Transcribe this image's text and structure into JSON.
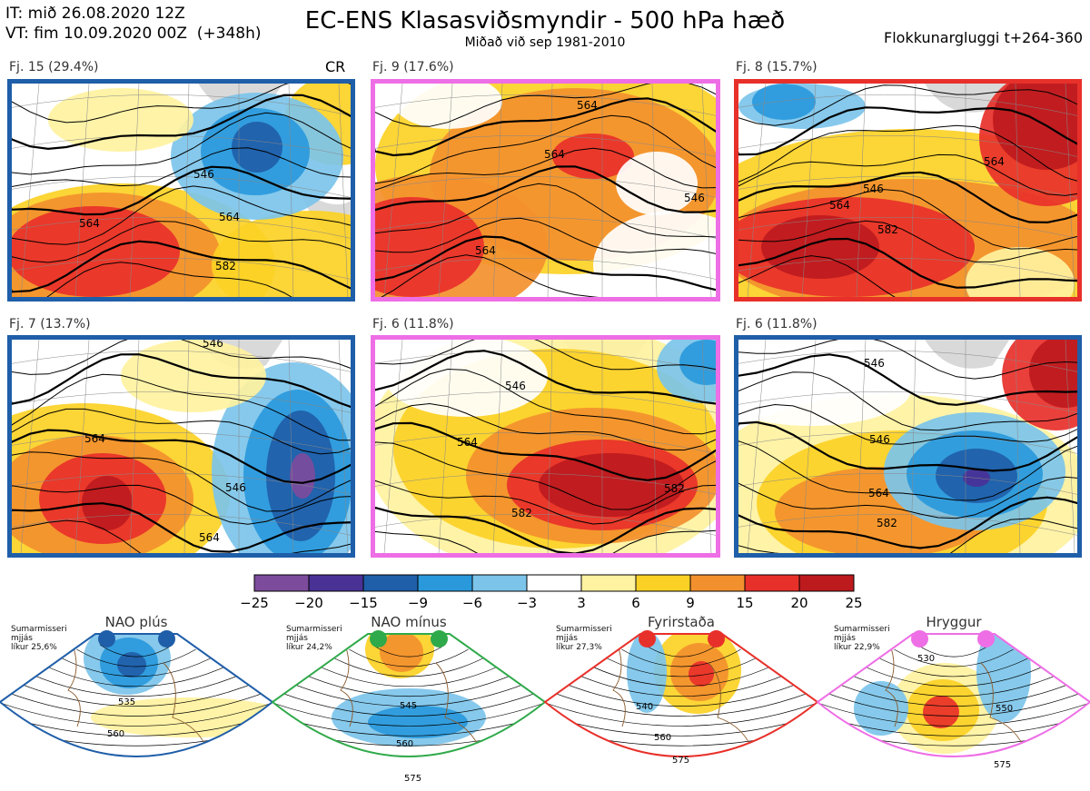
{
  "header": {
    "it_line": "IT: mið 26.08.2020 12Z",
    "vt_line": "VT: fim 10.09.2020 00Z  (+348h)",
    "title": "EC-ENS Klasasviðsmyndir - 500 hPa hæð",
    "subtitle": "Miðað við sep 1981-2010",
    "window": "Flokkunargluggi t+264-360"
  },
  "panels": [
    {
      "label": "Fj. 15 (29.4%)",
      "extra": "CR",
      "border": "#1f5ea8",
      "contours": [
        "546",
        "564",
        "582",
        "564"
      ]
    },
    {
      "label": "Fj. 9 (17.6%)",
      "extra": "",
      "border": "#ee6ee6",
      "contours": [
        "564",
        "564",
        "546",
        "564"
      ]
    },
    {
      "label": "Fj. 8 (15.7%)",
      "extra": "",
      "border": "#e8302a",
      "contours": [
        "546",
        "564",
        "582",
        "564"
      ]
    },
    {
      "label": "Fj. 7 (13.7%)",
      "extra": "",
      "border": "#1f5ea8",
      "contours": [
        "546",
        "564",
        "546",
        "564"
      ]
    },
    {
      "label": "Fj. 6 (11.8%)",
      "extra": "",
      "border": "#ee6ee6",
      "contours": [
        "546",
        "564",
        "582",
        "582"
      ]
    },
    {
      "label": "Fj. 6 (11.8%)",
      "extra": "",
      "border": "#1f5ea8",
      "contours": [
        "546",
        "564",
        "582",
        "546"
      ]
    }
  ],
  "chart_data": {
    "type": "heatmap",
    "title": "EC-ENS Klasasviðsmyndir - 500 hPa hæð",
    "colorbar": {
      "ticks": [
        "−25",
        "−20",
        "−15",
        "−9",
        "−6",
        "−3",
        "3",
        "6",
        "9",
        "15",
        "20",
        "25"
      ],
      "colors": [
        "#7d4b9c",
        "#4a3196",
        "#1f5ea8",
        "#2a99dc",
        "#7cc4ea",
        "#ffffff",
        "#fff2a0",
        "#fcd125",
        "#f3902e",
        "#e8302a",
        "#bd1a1e"
      ]
    },
    "panel_labels": [
      "Fj. 15 (29.4%)",
      "Fj. 9 (17.6%)",
      "Fj. 8 (15.7%)",
      "Fj. 7 (13.7%)",
      "Fj. 6 (11.8%)",
      "Fj. 6 (11.8%)"
    ]
  },
  "regimes": [
    {
      "name": "NAO plús",
      "season": "Sumarmisseri",
      "stat": "mjjás",
      "prob": "líkur 25,6%",
      "color": "#1f5ea8",
      "contours": [
        "535",
        "560"
      ]
    },
    {
      "name": "NAO mínus",
      "season": "Sumarmisseri",
      "stat": "mjjás",
      "prob": "líkur 24,2%",
      "color": "#2faa4a",
      "contours": [
        "545",
        "560",
        "575"
      ]
    },
    {
      "name": "Fyrirstaða",
      "season": "Sumarmisseri",
      "stat": "mjjás",
      "prob": "líkur 27,3%",
      "color": "#e8302a",
      "contours": [
        "540",
        "560",
        "575"
      ]
    },
    {
      "name": "Hryggur",
      "season": "Sumarmisseri",
      "stat": "mjjás",
      "prob": "líkur 22,9%",
      "color": "#ee6ee6",
      "contours": [
        "530",
        "550",
        "575"
      ]
    }
  ]
}
